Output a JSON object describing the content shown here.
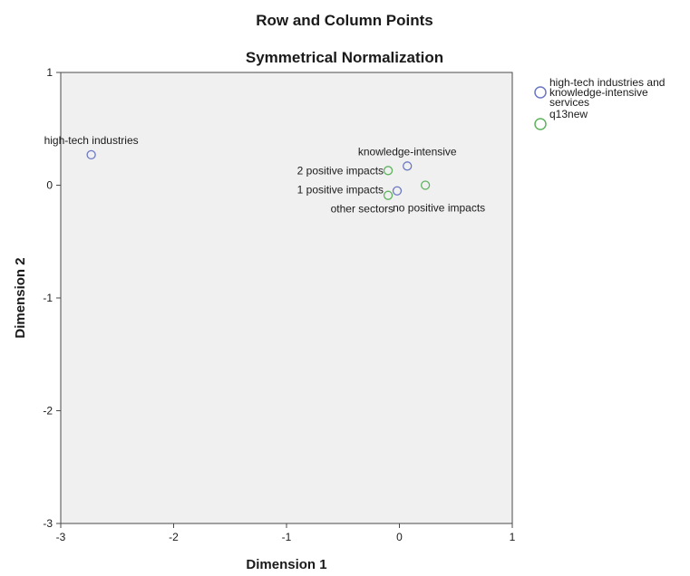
{
  "chart_data": {
    "type": "scatter",
    "title": "Row and Column Points",
    "subtitle": "Symmetrical Normalization",
    "xlabel": "Dimension 1",
    "ylabel": "Dimension 2",
    "xlim": [
      -3,
      1
    ],
    "ylim": [
      -3,
      1
    ],
    "xticks": [
      "-3",
      "-2",
      "-1",
      "0",
      "1"
    ],
    "yticks": [
      "1",
      "0",
      "-1",
      "-2",
      "-3"
    ],
    "grid": false,
    "legend_position": "top-right",
    "series": [
      {
        "name": "high-tech industries and knowledge-intensive services",
        "legend_lines": [
          "high-tech industries and",
          "knowledge-intensive",
          "services"
        ],
        "color": "#6b78c4",
        "points": [
          {
            "x": -2.73,
            "y": 0.27,
            "label": "high-tech industries"
          },
          {
            "x": 0.07,
            "y": 0.17,
            "label": "knowledge-intensive"
          },
          {
            "x": -0.02,
            "y": -0.05,
            "label": "other sectors"
          }
        ]
      },
      {
        "name": "q13new",
        "legend_lines": [
          "q13new"
        ],
        "color": "#5fb35f",
        "points": [
          {
            "x": -0.1,
            "y": 0.13,
            "label": "2 positive impacts"
          },
          {
            "x": -0.1,
            "y": -0.09,
            "label": "1 positive impacts"
          },
          {
            "x": 0.23,
            "y": 0.0,
            "label": "no positive impacts"
          }
        ]
      }
    ]
  }
}
